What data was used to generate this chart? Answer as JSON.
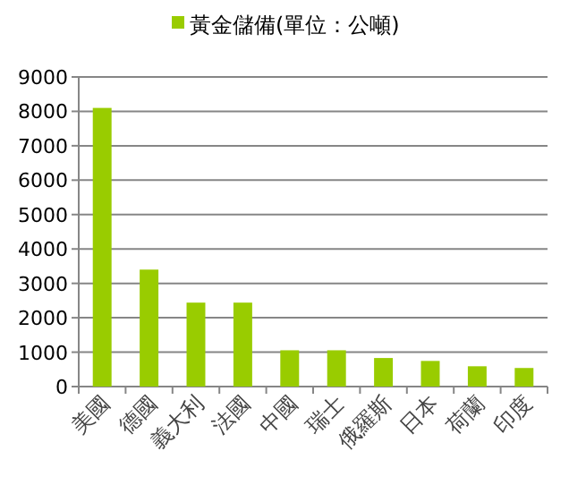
{
  "chart_data": {
    "type": "bar",
    "categories": [
      "美國",
      "德國",
      "義大利",
      "法國",
      "中國",
      "瑞士",
      "俄羅斯",
      "日本",
      "荷蘭",
      "印度"
    ],
    "series": [
      {
        "name": "黃金儲備(單位：公噸)",
        "color": "#99cc00",
        "values": [
          8100,
          3400,
          2440,
          2440,
          1055,
          1055,
          830,
          745,
          590,
          540
        ]
      }
    ],
    "ylim": [
      0,
      9000
    ],
    "yticks": [
      0,
      1000,
      2000,
      3000,
      4000,
      5000,
      6000,
      7000,
      8000,
      9000
    ],
    "grid": "y",
    "legend": "top"
  }
}
